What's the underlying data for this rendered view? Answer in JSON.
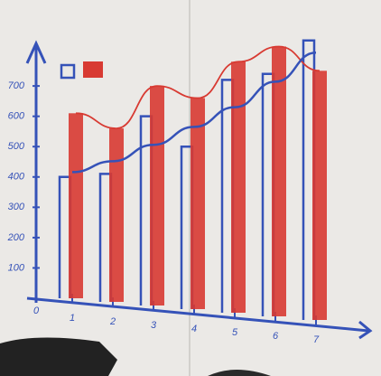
{
  "chart_data": {
    "type": "bar",
    "categories": [
      "1",
      "2",
      "3",
      "4",
      "5",
      "6",
      "7"
    ],
    "origin_label": "0",
    "series": [
      {
        "color": "#3552b8",
        "style": "outline",
        "values": [
          400,
          410,
          600,
          500,
          720,
          740,
          850
        ]
      },
      {
        "color": "#d83a32",
        "style": "filled",
        "values": [
          610,
          560,
          700,
          660,
          780,
          830,
          750
        ]
      },
      {
        "color": "#d83a32",
        "style": "line",
        "values": [
          610,
          560,
          700,
          660,
          780,
          830,
          750
        ]
      },
      {
        "color": "#3552b8",
        "style": "line",
        "values": [
          416,
          452,
          506,
          565,
          630,
          714,
          810
        ]
      }
    ],
    "ylim": [
      0,
      900
    ],
    "yticks": [
      100,
      200,
      300,
      400,
      500,
      600,
      700
    ]
  }
}
